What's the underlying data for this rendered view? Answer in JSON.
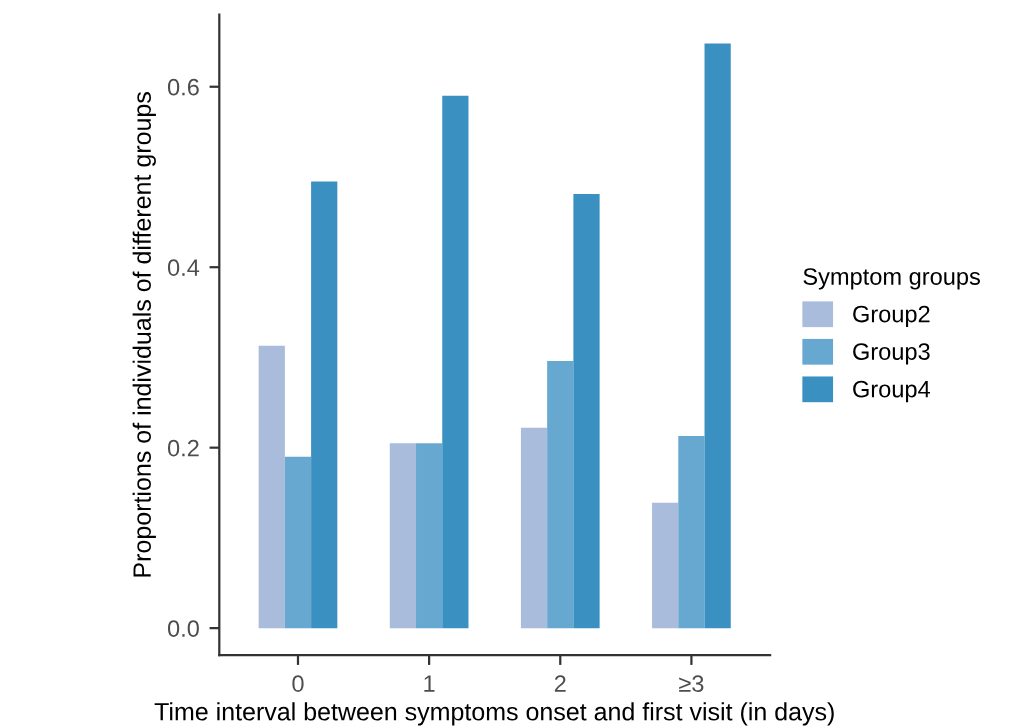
{
  "chart_data": {
    "type": "bar",
    "xlabel": "Time interval between symptoms onset and first visit (in days)",
    "ylabel": "Proportions of individuals of different groups",
    "legend_title": "Symptom groups",
    "categories": [
      "0",
      "1",
      "2",
      "≥3"
    ],
    "series": [
      {
        "name": "Group2",
        "color": "#a9bcdc",
        "values": [
          0.313,
          0.205,
          0.222,
          0.139
        ]
      },
      {
        "name": "Group3",
        "color": "#66a8d0",
        "values": [
          0.19,
          0.205,
          0.296,
          0.213
        ]
      },
      {
        "name": "Group4",
        "color": "#3a90c0",
        "values": [
          0.495,
          0.59,
          0.481,
          0.648
        ]
      }
    ],
    "ylim": [
      -0.03,
      0.68
    ],
    "yticks": [
      {
        "value": 0,
        "label": "0.0"
      },
      {
        "value": 0.2,
        "label": "0.2"
      },
      {
        "value": 0.4,
        "label": "0.4"
      },
      {
        "value": 0.6,
        "label": "0.6"
      }
    ],
    "grid": false,
    "legend": "right"
  }
}
